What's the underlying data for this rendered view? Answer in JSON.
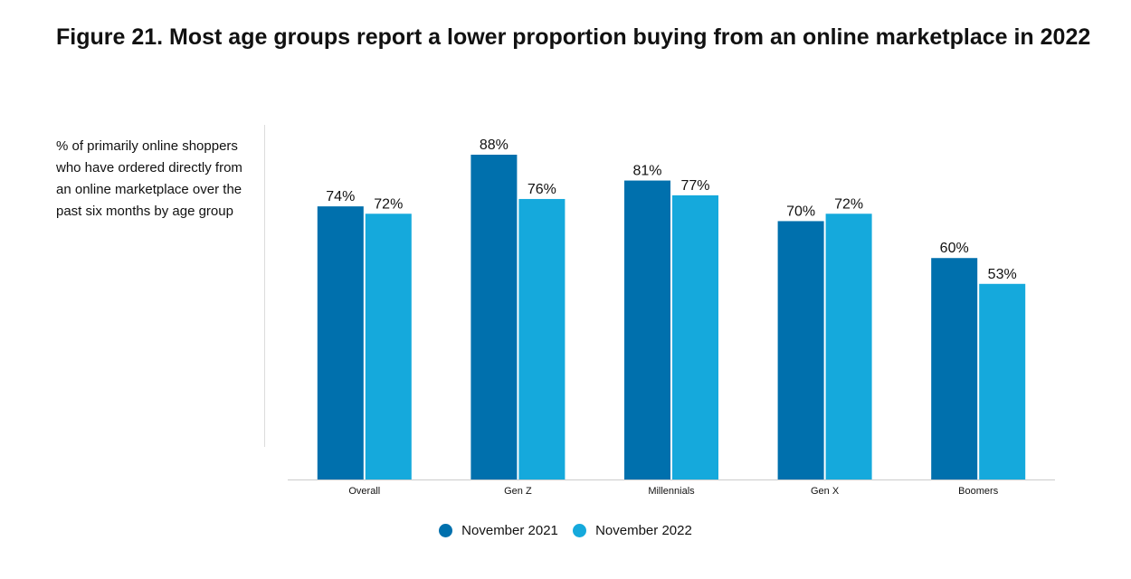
{
  "title": "Figure 21. Most age groups report a lower proportion buying from an online marketplace in 2022",
  "side_note": "% of primarily online shoppers who have ordered directly from an online marketplace over the past six months by age group",
  "colors": {
    "nov2021": "#0070AD",
    "nov2022": "#15A9DC"
  },
  "chart_data": {
    "type": "bar",
    "title": "Figure 21. Most age groups report a lower proportion buying from an online marketplace in 2022",
    "ylabel": "",
    "xlabel": "",
    "categories": [
      "Overall",
      "Gen Z",
      "Millennials",
      "Gen X",
      "Boomers"
    ],
    "series": [
      {
        "name": "November 2021",
        "values": [
          74,
          88,
          81,
          70,
          60
        ],
        "labels": [
          "74%",
          "88%",
          "81%",
          "70%",
          "60%"
        ]
      },
      {
        "name": "November 2022",
        "values": [
          72,
          76,
          77,
          72,
          53
        ],
        "labels": [
          "72%",
          "76%",
          "77%",
          "72%",
          "53%"
        ]
      }
    ],
    "ylim": [
      0,
      100
    ],
    "grid": false,
    "legend": "bottom-center"
  }
}
